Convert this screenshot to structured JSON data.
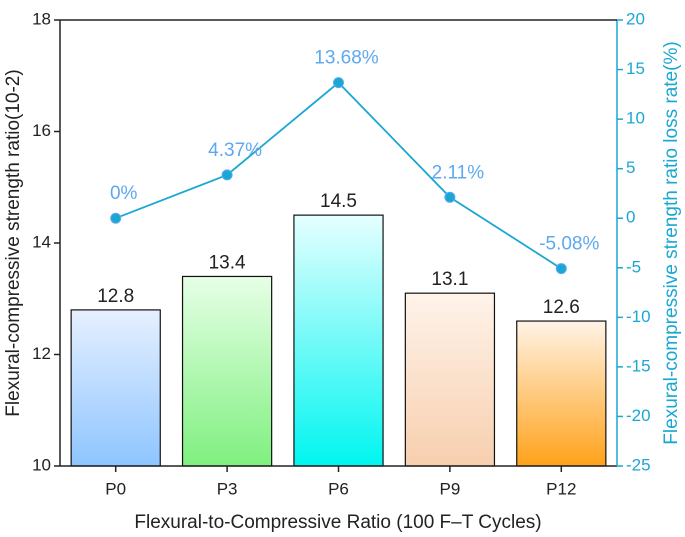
{
  "chart_data": {
    "type": "combo",
    "x_label": "Flexural-to-Compressive Ratio (100 F–T Cycles)",
    "y_label": "Flexural-compressive strength ratio(10-2)",
    "y2_label": "Flexural-compressive strength ratio loss rate(%)",
    "y2_color": "#1aa7d4",
    "categories": [
      "P0",
      "P3",
      "P6",
      "P9",
      "P12"
    ],
    "series": [
      {
        "type": "bar",
        "values": [
          12.8,
          13.4,
          14.5,
          13.1,
          12.6
        ],
        "colors": [
          [
            "#e6f0ff",
            "#8ec5ff"
          ],
          [
            "#e6ffe6",
            "#7ff07f"
          ],
          [
            "#e6ffff",
            "#00f5f0"
          ],
          [
            "#fff3ea",
            "#f7cfae"
          ],
          [
            "#fff3e6",
            "#ffa21a"
          ]
        ]
      },
      {
        "type": "line",
        "axis": "y2",
        "color": "#1aa7d4",
        "label_color": "#5ea8ef",
        "values": [
          0,
          4.37,
          13.68,
          2.11,
          -5.08
        ],
        "value_labels": [
          "0%",
          "4.37%",
          "13.68%",
          "2.11%",
          "-5.08%"
        ]
      }
    ],
    "ylim": [
      10,
      18
    ],
    "yticks": [
      10,
      12,
      14,
      16,
      18
    ],
    "y2lim": [
      -25,
      20
    ],
    "y2ticks": [
      -25,
      -20,
      -15,
      -10,
      -5,
      0,
      5,
      10,
      15,
      20
    ]
  }
}
